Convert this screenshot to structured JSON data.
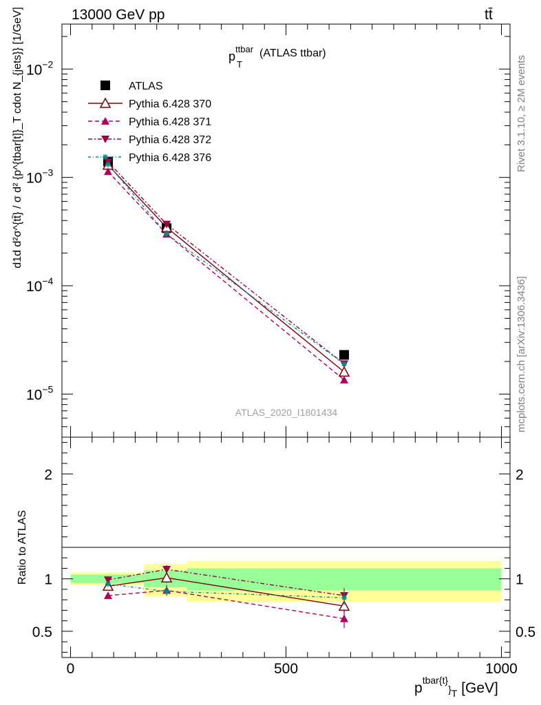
{
  "header": {
    "energy_label": "13000 GeV pp",
    "process_label": "tt̄"
  },
  "side_labels": {
    "rivet": "Rivet 3.1.10, ≥ 2M events",
    "mcplots": "mcplots.cern.ch [arXiv:1306.3436]"
  },
  "plot_title": {
    "main": "p",
    "sub": "T",
    "sup": "ttbar",
    "suffix": " (ATLAS ttbar)"
  },
  "analysis_label": "ATLAS_2020_I1801434",
  "y_axis_label_top": "d1d d²σ^{tt̄} / σ d² {p^{tbar[t]}_T  cdot N_{jets}} [1/GeV]",
  "y_axis_label_bottom": "Ratio to ATLAS",
  "x_axis_label": {
    "main": "p",
    "sup": "tbar{t}",
    "sub": "}",
    "subsub": "T",
    "unit": " [GeV]"
  },
  "colors": {
    "data": "#000000",
    "p370": "#7f0000",
    "p371": "#b0005a",
    "p372": "#9a0045",
    "p376": "#008b8b",
    "band_inner": "#99ff99",
    "band_outer": "#ffff99"
  },
  "chart_data": [
    {
      "type": "scatter",
      "panel": "main",
      "y_scale": "log",
      "xlim": [
        -20,
        1020
      ],
      "ylim": [
        4e-06,
        0.026
      ],
      "x_ticks": [
        0,
        500,
        1000
      ],
      "y_tick_labels": [
        {
          "value": 0.01,
          "base": "10",
          "exp": "−2"
        },
        {
          "value": 0.001,
          "base": "10",
          "exp": "−3"
        },
        {
          "value": 0.0001,
          "base": "10",
          "exp": "−4"
        },
        {
          "value": 1e-05,
          "base": "10",
          "exp": "−5"
        }
      ],
      "bins": [
        [
          0,
          170
        ],
        [
          170,
          270
        ],
        [
          270,
          1000
        ]
      ],
      "x": [
        87,
        223,
        635
      ],
      "series": [
        {
          "name": "ATLAS",
          "marker": "square-filled",
          "line": "none",
          "values": [
            0.0014,
            0.00034,
            2.3e-05
          ]
        },
        {
          "name": "Pythia 6.428 370",
          "marker": "triangle-up-open",
          "line": "solid",
          "values": [
            0.0013,
            0.000345,
            1.6e-05
          ]
        },
        {
          "name": "Pythia 6.428 371",
          "marker": "triangle-up-filled",
          "line": "dashed",
          "values": [
            0.00113,
            0.0003,
            1.35e-05
          ]
        },
        {
          "name": "Pythia 6.428 372",
          "marker": "triangle-down-filled",
          "line": "dashdot",
          "values": [
            0.00139,
            0.00037,
            1.9e-05
          ]
        },
        {
          "name": "Pythia 6.428 376",
          "marker": "star",
          "line": "dashdot2",
          "values": [
            0.00132,
            0.0003,
            1.9e-05
          ]
        }
      ]
    },
    {
      "type": "scatter",
      "panel": "ratio",
      "xlabel": "p^{tbar{t}}_T [GeV]",
      "ylabel": "Ratio to ATLAS",
      "xlim": [
        -20,
        1020
      ],
      "ylim": [
        0.25,
        2.35
      ],
      "x_ticks": [
        0,
        500,
        1000
      ],
      "y_tick_labels": [
        0.5,
        1,
        2
      ],
      "bands": [
        {
          "x": [
            0,
            170
          ],
          "inner": [
            0.96,
            1.04
          ],
          "outer": [
            0.94,
            1.06
          ]
        },
        {
          "x": [
            170,
            270
          ],
          "inner": [
            0.92,
            1.08
          ],
          "outer": [
            0.83,
            1.14
          ]
        },
        {
          "x": [
            270,
            1000
          ],
          "inner": [
            0.89,
            1.1
          ],
          "outer": [
            0.78,
            1.17
          ]
        }
      ],
      "x": [
        87,
        223,
        635
      ],
      "series": [
        {
          "name": "Pythia 6.428 370",
          "values": [
            0.93,
            1.01,
            0.74
          ],
          "errors": [
            0.01,
            0.05,
            0.06
          ]
        },
        {
          "name": "Pythia 6.428 371",
          "values": [
            0.84,
            0.89,
            0.62
          ],
          "errors": [
            0.01,
            0.05,
            0.09
          ]
        },
        {
          "name": "Pythia 6.428 372",
          "values": [
            0.99,
            1.09,
            0.84
          ],
          "errors": [
            0.01,
            0.04,
            0.07
          ]
        },
        {
          "name": "Pythia 6.428 376",
          "values": [
            0.95,
            0.88,
            0.82
          ],
          "errors": [
            0.01,
            0.04,
            0.07
          ]
        }
      ]
    }
  ]
}
